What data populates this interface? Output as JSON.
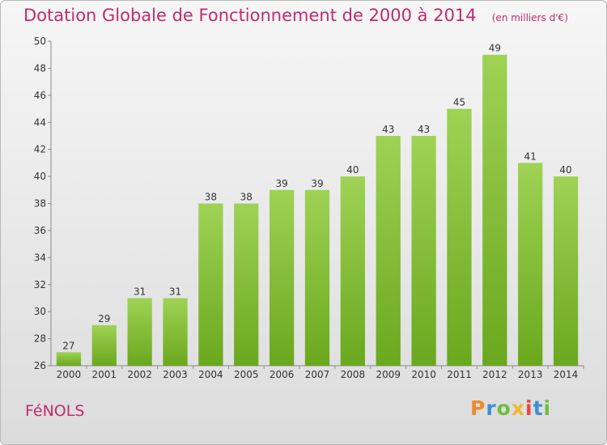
{
  "header": {
    "title": "Dotation Globale de Fonctionnement de 2000 à 2014",
    "subtitle": "(en milliers d'€)"
  },
  "footer": {
    "commune": "FéNOLS",
    "logo_text": "Proxiti",
    "logo_colors": [
      "#f08a2a",
      "#3c8fd6",
      "#6fbf3f",
      "#f0b731",
      "#e8493b",
      "#3c8fd6",
      "#6fbf3f"
    ]
  },
  "chart_data": {
    "type": "bar",
    "title": "Dotation Globale de Fonctionnement de 2000 à 2014",
    "subtitle": "(en milliers d'€)",
    "categories": [
      "2000",
      "2001",
      "2002",
      "2003",
      "2004",
      "2005",
      "2006",
      "2007",
      "2008",
      "2009",
      "2010",
      "2011",
      "2012",
      "2013",
      "2014"
    ],
    "values": [
      27,
      29,
      31,
      31,
      38,
      38,
      39,
      39,
      40,
      43,
      43,
      45,
      49,
      41,
      40
    ],
    "ylim": [
      26,
      50
    ],
    "yticks": [
      26,
      28,
      30,
      32,
      34,
      36,
      38,
      40,
      42,
      44,
      46,
      48,
      50
    ],
    "grid": false,
    "bar_color_light": "#9fd255",
    "bar_color_dark": "#6aa81e"
  }
}
